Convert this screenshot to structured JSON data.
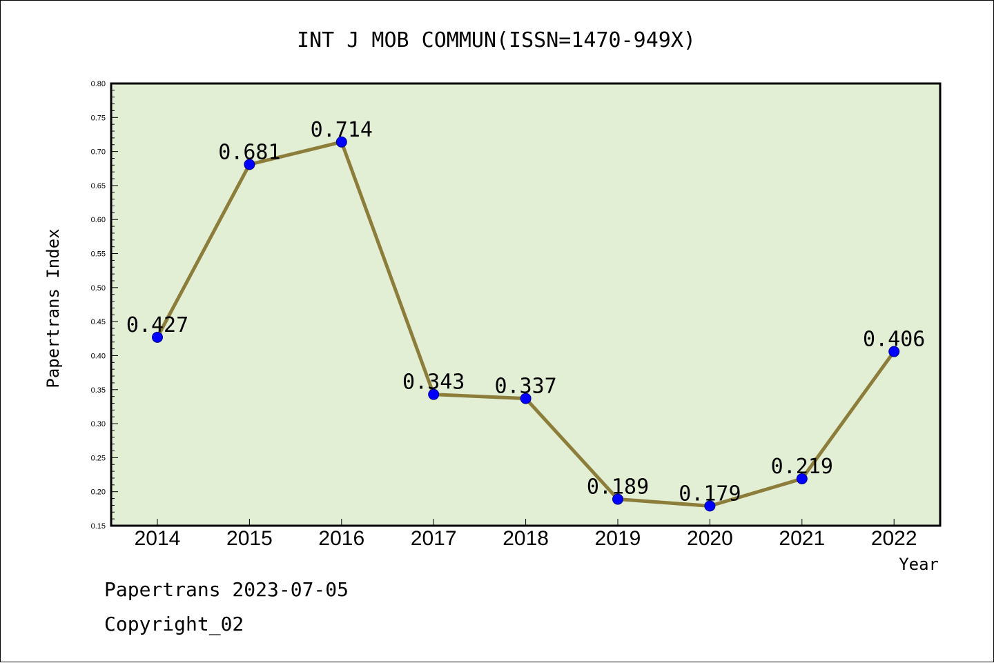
{
  "chart_data": {
    "type": "line",
    "title": "INT J MOB COMMUN(ISSN=1470-949X)",
    "xlabel": "Year",
    "ylabel": "Papertrans Index",
    "categories": [
      "2014",
      "2015",
      "2016",
      "2017",
      "2018",
      "2019",
      "2020",
      "2021",
      "2022"
    ],
    "series": [
      {
        "values": [
          0.427,
          0.681,
          0.714,
          0.343,
          0.337,
          0.189,
          0.179,
          0.219,
          0.406
        ],
        "data_labels": [
          "0.427",
          "0.681",
          "0.714",
          "0.343",
          "0.337",
          "0.189",
          "0.179",
          "0.219",
          "0.406"
        ]
      }
    ],
    "ylim": [
      0.15,
      0.8
    ],
    "yticks": [
      "0.15",
      "0.20",
      "0.25",
      "0.30",
      "0.35",
      "0.40",
      "0.45",
      "0.50",
      "0.55",
      "0.60",
      "0.65",
      "0.70",
      "0.75",
      "0.80"
    ],
    "legend": "none",
    "colors": {
      "plot_background": "#e2efd5",
      "line": "#8c7d3a",
      "marker": "#0000ff",
      "marker_edge": "#00008b"
    }
  },
  "footer": {
    "date_line": "Papertrans 2023-07-05",
    "copyright": "Copyright_02"
  }
}
